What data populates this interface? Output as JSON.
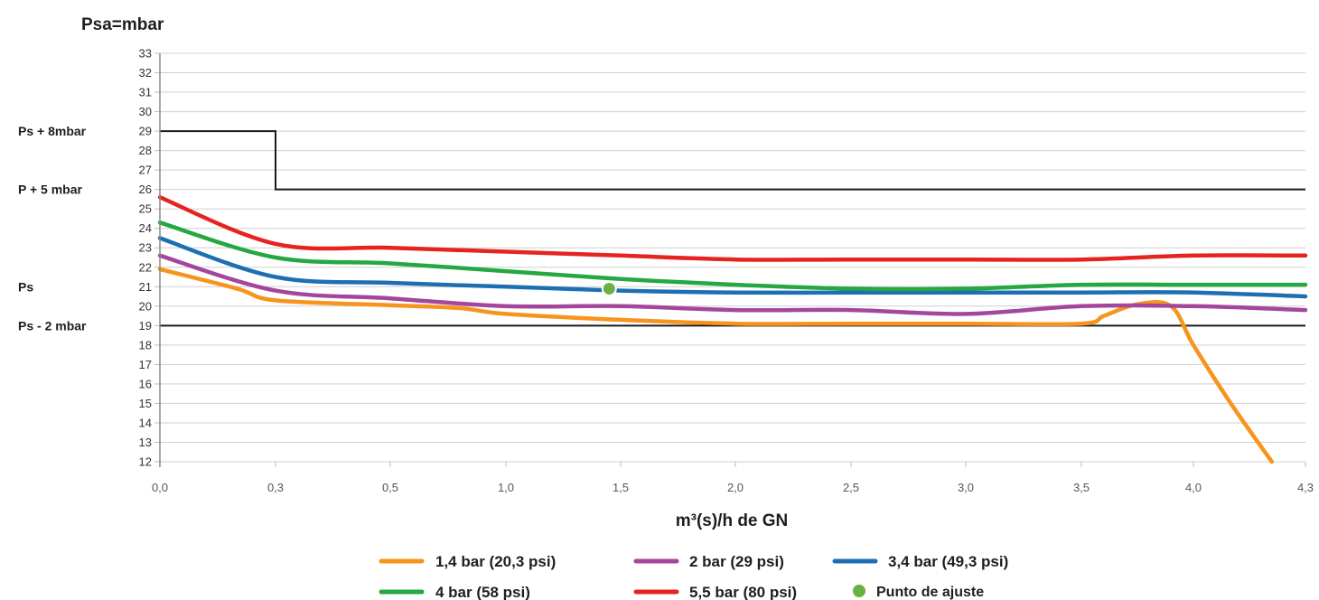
{
  "chart_data": {
    "type": "line",
    "title": "",
    "ylabel": "Psa=mbar",
    "xlabel": "m³(s)/h de GN",
    "ylim": [
      12,
      33
    ],
    "yticks": [
      "12",
      "13",
      "14",
      "15",
      "16",
      "17",
      "18",
      "19",
      "20",
      "21",
      "22",
      "23",
      "24",
      "25",
      "26",
      "27",
      "28",
      "29",
      "30",
      "31",
      "32",
      "33"
    ],
    "xticks": [
      "0,0",
      "0,3",
      "0,5",
      "1,0",
      "1,5",
      "2,0",
      "2,5",
      "3,0",
      "3,5",
      "4,0",
      "4,3"
    ],
    "reference_labels": [
      {
        "text": "Ps + 8mbar",
        "y": 29
      },
      {
        "text": "P + 5 mbar",
        "y": 26
      },
      {
        "text": "Ps",
        "y": 21
      },
      {
        "text": "Ps - 2 mbar",
        "y": 19
      }
    ],
    "limit_line": {
      "color": "#1a1a1a",
      "upper_step": [
        [
          0.0,
          29
        ],
        [
          0.3,
          29
        ],
        [
          0.3,
          26
        ],
        [
          4.3,
          26
        ]
      ],
      "lower": [
        [
          0.0,
          19
        ],
        [
          4.3,
          19
        ]
      ]
    },
    "series": [
      {
        "name": "1,4 bar (20,3 psi)",
        "color": "#f7941d",
        "points": [
          [
            0.0,
            21.9
          ],
          [
            0.2,
            20.9
          ],
          [
            0.3,
            20.3
          ],
          [
            0.5,
            20.05
          ],
          [
            0.8,
            19.9
          ],
          [
            1.0,
            19.6
          ],
          [
            1.5,
            19.3
          ],
          [
            2.0,
            19.1
          ],
          [
            2.5,
            19.1
          ],
          [
            3.0,
            19.1
          ],
          [
            3.5,
            19.1
          ],
          [
            3.6,
            19.5
          ],
          [
            3.75,
            20.1
          ],
          [
            3.9,
            20.0
          ],
          [
            4.0,
            18.0
          ],
          [
            4.1,
            15.0
          ],
          [
            4.21,
            12.0
          ]
        ]
      },
      {
        "name": "2 bar (29 psi)",
        "color": "#a4479c",
        "points": [
          [
            0.0,
            22.6
          ],
          [
            0.3,
            20.8
          ],
          [
            0.5,
            20.4
          ],
          [
            1.0,
            20.0
          ],
          [
            1.5,
            20.0
          ],
          [
            2.0,
            19.8
          ],
          [
            2.5,
            19.8
          ],
          [
            3.0,
            19.6
          ],
          [
            3.5,
            20.0
          ],
          [
            4.0,
            20.0
          ],
          [
            4.3,
            19.8
          ]
        ]
      },
      {
        "name": "3,4 bar (49,3 psi)",
        "color": "#1d6fb3",
        "points": [
          [
            0.0,
            23.5
          ],
          [
            0.3,
            21.5
          ],
          [
            0.5,
            21.2
          ],
          [
            1.0,
            21.0
          ],
          [
            1.5,
            20.8
          ],
          [
            2.0,
            20.7
          ],
          [
            2.5,
            20.7
          ],
          [
            3.0,
            20.7
          ],
          [
            3.5,
            20.7
          ],
          [
            4.0,
            20.7
          ],
          [
            4.3,
            20.5
          ]
        ]
      },
      {
        "name": "4 bar (58 psi)",
        "color": "#25a741",
        "points": [
          [
            0.0,
            24.3
          ],
          [
            0.3,
            22.5
          ],
          [
            0.5,
            22.2
          ],
          [
            1.0,
            21.8
          ],
          [
            1.5,
            21.4
          ],
          [
            2.0,
            21.1
          ],
          [
            2.5,
            20.9
          ],
          [
            3.0,
            20.9
          ],
          [
            3.5,
            21.1
          ],
          [
            4.0,
            21.1
          ],
          [
            4.3,
            21.1
          ]
        ]
      },
      {
        "name": "5,5 bar (80 psi)",
        "color": "#e52421",
        "points": [
          [
            0.0,
            25.6
          ],
          [
            0.3,
            23.2
          ],
          [
            0.5,
            23.0
          ],
          [
            1.0,
            22.8
          ],
          [
            1.5,
            22.6
          ],
          [
            2.0,
            22.4
          ],
          [
            2.5,
            22.4
          ],
          [
            3.0,
            22.4
          ],
          [
            3.5,
            22.4
          ],
          [
            4.0,
            22.6
          ],
          [
            4.3,
            22.6
          ]
        ]
      }
    ],
    "markers": [
      {
        "name": "Punto de ajuste",
        "x": 1.45,
        "y": 20.9,
        "color": "#6ab043"
      }
    ],
    "legend_placement": "bottom-center",
    "grid": "horizontal"
  }
}
